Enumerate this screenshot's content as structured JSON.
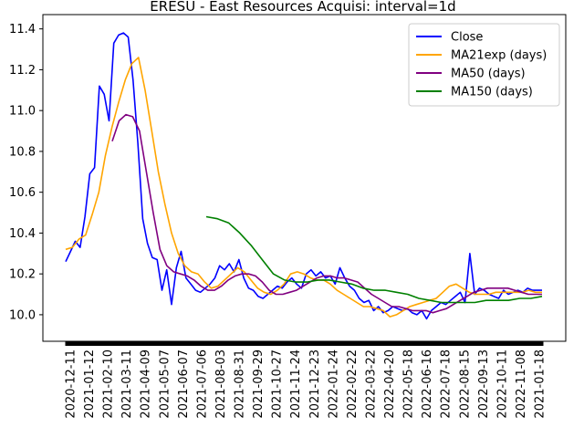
{
  "chart_data": {
    "type": "line",
    "title": "ERESU - East Resources Acquisi: interval=1d",
    "xlabel": "",
    "ylabel": "",
    "x_ticks": [
      "2020-12-11",
      "2021-01-12",
      "2021-02-10",
      "2021-03-11",
      "2021-04-09",
      "2021-05-07",
      "2021-06-07",
      "2021-07-06",
      "2021-08-03",
      "2021-08-31",
      "2021-09-29",
      "2021-10-27",
      "2021-11-24",
      "2021-12-23",
      "2022-01-24",
      "2022-02-22",
      "2022-03-22",
      "2022-04-20",
      "2022-05-18",
      "2022-06-16",
      "2022-07-18",
      "2022-08-15",
      "2022-09-13",
      "2022-10-11",
      "2022-11-08",
      "2021-01-18"
    ],
    "y_ticks": [
      "10.0",
      "10.2",
      "10.4",
      "10.6",
      "10.8",
      "11.0",
      "11.2",
      "11.4"
    ],
    "ylim": [
      9.87,
      11.47
    ],
    "legend_position": "top-right",
    "series": [
      {
        "name": "Close",
        "color": "#0000ff",
        "points": [
          [
            0,
            10.26
          ],
          [
            1,
            10.31
          ],
          [
            2,
            10.36
          ],
          [
            3,
            10.33
          ],
          [
            4,
            10.48
          ],
          [
            5,
            10.69
          ],
          [
            6,
            10.72
          ],
          [
            7,
            11.12
          ],
          [
            8,
            11.08
          ],
          [
            9,
            10.95
          ],
          [
            10,
            11.33
          ],
          [
            11,
            11.37
          ],
          [
            12,
            11.38
          ],
          [
            13,
            11.36
          ],
          [
            14,
            11.15
          ],
          [
            15,
            10.84
          ],
          [
            16,
            10.47
          ],
          [
            17,
            10.35
          ],
          [
            18,
            10.28
          ],
          [
            19,
            10.27
          ],
          [
            20,
            10.12
          ],
          [
            21,
            10.22
          ],
          [
            22,
            10.05
          ],
          [
            23,
            10.23
          ],
          [
            24,
            10.31
          ],
          [
            25,
            10.18
          ],
          [
            26,
            10.15
          ],
          [
            27,
            10.12
          ],
          [
            28,
            10.11
          ],
          [
            29,
            10.13
          ],
          [
            30,
            10.15
          ],
          [
            31,
            10.18
          ],
          [
            32,
            10.24
          ],
          [
            33,
            10.22
          ],
          [
            34,
            10.25
          ],
          [
            35,
            10.21
          ],
          [
            36,
            10.27
          ],
          [
            37,
            10.18
          ],
          [
            38,
            10.13
          ],
          [
            39,
            10.12
          ],
          [
            40,
            10.09
          ],
          [
            41,
            10.08
          ],
          [
            42,
            10.1
          ],
          [
            43,
            10.12
          ],
          [
            44,
            10.14
          ],
          [
            45,
            10.13
          ],
          [
            46,
            10.16
          ],
          [
            47,
            10.18
          ],
          [
            48,
            10.15
          ],
          [
            49,
            10.13
          ],
          [
            50,
            10.2
          ],
          [
            51,
            10.22
          ],
          [
            52,
            10.19
          ],
          [
            53,
            10.21
          ],
          [
            54,
            10.18
          ],
          [
            55,
            10.19
          ],
          [
            56,
            10.15
          ],
          [
            57,
            10.23
          ],
          [
            58,
            10.18
          ],
          [
            59,
            10.14
          ],
          [
            60,
            10.12
          ],
          [
            61,
            10.08
          ],
          [
            62,
            10.06
          ],
          [
            63,
            10.07
          ],
          [
            64,
            10.02
          ],
          [
            65,
            10.04
          ],
          [
            66,
            10.01
          ],
          [
            67,
            10.02
          ],
          [
            68,
            10.04
          ],
          [
            69,
            10.03
          ],
          [
            70,
            10.02
          ],
          [
            71,
            10.03
          ],
          [
            72,
            10.01
          ],
          [
            73,
            10.0
          ],
          [
            74,
            10.02
          ],
          [
            75,
            9.98
          ],
          [
            76,
            10.02
          ],
          [
            77,
            10.04
          ],
          [
            78,
            10.06
          ],
          [
            79,
            10.05
          ],
          [
            80,
            10.07
          ],
          [
            81,
            10.09
          ],
          [
            82,
            10.11
          ],
          [
            83,
            10.06
          ],
          [
            84,
            10.3
          ],
          [
            85,
            10.1
          ],
          [
            86,
            10.13
          ],
          [
            87,
            10.12
          ],
          [
            88,
            10.1
          ],
          [
            89,
            10.09
          ],
          [
            90,
            10.08
          ],
          [
            91,
            10.12
          ],
          [
            92,
            10.1
          ],
          [
            93,
            10.11
          ],
          [
            94,
            10.12
          ],
          [
            95,
            10.11
          ],
          [
            96,
            10.13
          ],
          [
            97,
            10.12
          ],
          [
            98,
            10.12
          ],
          [
            99,
            10.12
          ]
        ]
      },
      {
        "name": "MA21exp (days)",
        "color": "#ffa500",
        "points": [
          [
            0,
            10.32
          ],
          [
            1,
            10.33
          ],
          [
            2,
            10.37
          ],
          [
            3,
            10.39
          ],
          [
            4,
            10.49
          ],
          [
            5,
            10.6
          ],
          [
            6,
            10.78
          ],
          [
            7,
            10.92
          ],
          [
            8,
            11.04
          ],
          [
            9,
            11.15
          ],
          [
            10,
            11.23
          ],
          [
            11,
            11.26
          ],
          [
            12,
            11.1
          ],
          [
            13,
            10.9
          ],
          [
            14,
            10.7
          ],
          [
            15,
            10.54
          ],
          [
            16,
            10.4
          ],
          [
            17,
            10.3
          ],
          [
            18,
            10.24
          ],
          [
            19,
            10.21
          ],
          [
            20,
            10.2
          ],
          [
            21,
            10.16
          ],
          [
            22,
            10.13
          ],
          [
            23,
            10.14
          ],
          [
            24,
            10.17
          ],
          [
            25,
            10.2
          ],
          [
            26,
            10.23
          ],
          [
            27,
            10.21
          ],
          [
            28,
            10.17
          ],
          [
            29,
            10.13
          ],
          [
            30,
            10.11
          ],
          [
            31,
            10.1
          ],
          [
            32,
            10.12
          ],
          [
            33,
            10.15
          ],
          [
            34,
            10.2
          ],
          [
            35,
            10.21
          ],
          [
            36,
            10.2
          ],
          [
            37,
            10.18
          ],
          [
            38,
            10.17
          ],
          [
            39,
            10.17
          ],
          [
            40,
            10.15
          ],
          [
            41,
            10.12
          ],
          [
            42,
            10.1
          ],
          [
            43,
            10.08
          ],
          [
            44,
            10.06
          ],
          [
            45,
            10.04
          ],
          [
            46,
            10.04
          ],
          [
            47,
            10.03
          ],
          [
            48,
            10.02
          ],
          [
            49,
            9.99
          ],
          [
            50,
            10.0
          ],
          [
            51,
            10.02
          ],
          [
            52,
            10.04
          ],
          [
            53,
            10.05
          ],
          [
            54,
            10.06
          ],
          [
            55,
            10.07
          ],
          [
            56,
            10.08
          ],
          [
            57,
            10.11
          ],
          [
            58,
            10.14
          ],
          [
            59,
            10.15
          ],
          [
            60,
            10.13
          ],
          [
            61,
            10.11
          ],
          [
            62,
            10.1
          ],
          [
            63,
            10.1
          ],
          [
            64,
            10.1
          ],
          [
            65,
            10.11
          ],
          [
            66,
            10.11
          ],
          [
            67,
            10.11
          ],
          [
            68,
            10.11
          ],
          [
            69,
            10.11
          ],
          [
            70,
            10.12
          ],
          [
            71,
            10.11
          ],
          [
            72,
            10.11
          ]
        ]
      },
      {
        "name": "MA50 (days)",
        "color": "#800080",
        "points": [
          [
            0,
            10.85
          ],
          [
            1,
            10.95
          ],
          [
            2,
            10.98
          ],
          [
            3,
            10.97
          ],
          [
            4,
            10.9
          ],
          [
            5,
            10.7
          ],
          [
            6,
            10.5
          ],
          [
            7,
            10.32
          ],
          [
            8,
            10.24
          ],
          [
            9,
            10.21
          ],
          [
            10,
            10.2
          ],
          [
            11,
            10.19
          ],
          [
            12,
            10.17
          ],
          [
            13,
            10.14
          ],
          [
            14,
            10.12
          ],
          [
            15,
            10.12
          ],
          [
            16,
            10.14
          ],
          [
            17,
            10.17
          ],
          [
            18,
            10.19
          ],
          [
            19,
            10.2
          ],
          [
            20,
            10.2
          ],
          [
            21,
            10.19
          ],
          [
            22,
            10.16
          ],
          [
            23,
            10.12
          ],
          [
            24,
            10.1
          ],
          [
            25,
            10.1
          ],
          [
            26,
            10.11
          ],
          [
            27,
            10.12
          ],
          [
            28,
            10.14
          ],
          [
            29,
            10.16
          ],
          [
            30,
            10.18
          ],
          [
            31,
            10.19
          ],
          [
            32,
            10.19
          ],
          [
            33,
            10.18
          ],
          [
            34,
            10.18
          ],
          [
            35,
            10.17
          ],
          [
            36,
            10.16
          ],
          [
            37,
            10.13
          ],
          [
            38,
            10.1
          ],
          [
            39,
            10.08
          ],
          [
            40,
            10.06
          ],
          [
            41,
            10.04
          ],
          [
            42,
            10.04
          ],
          [
            43,
            10.03
          ],
          [
            44,
            10.02
          ],
          [
            45,
            10.02
          ],
          [
            46,
            10.02
          ],
          [
            47,
            10.01
          ],
          [
            48,
            10.02
          ],
          [
            49,
            10.03
          ],
          [
            50,
            10.05
          ],
          [
            51,
            10.07
          ],
          [
            52,
            10.09
          ],
          [
            53,
            10.11
          ],
          [
            54,
            10.12
          ],
          [
            55,
            10.13
          ],
          [
            56,
            10.13
          ],
          [
            57,
            10.13
          ],
          [
            58,
            10.13
          ],
          [
            59,
            10.12
          ],
          [
            60,
            10.11
          ],
          [
            61,
            10.1
          ],
          [
            62,
            10.1
          ],
          [
            63,
            10.1
          ]
        ]
      },
      {
        "name": "MA150 (days)",
        "color": "#008000",
        "points": [
          [
            0,
            10.48
          ],
          [
            1,
            10.47
          ],
          [
            2,
            10.45
          ],
          [
            3,
            10.4
          ],
          [
            4,
            10.34
          ],
          [
            5,
            10.27
          ],
          [
            6,
            10.2
          ],
          [
            7,
            10.17
          ],
          [
            8,
            10.16
          ],
          [
            9,
            10.16
          ],
          [
            10,
            10.17
          ],
          [
            11,
            10.17
          ],
          [
            12,
            10.16
          ],
          [
            13,
            10.15
          ],
          [
            14,
            10.13
          ],
          [
            15,
            10.12
          ],
          [
            16,
            10.12
          ],
          [
            17,
            10.11
          ],
          [
            18,
            10.1
          ],
          [
            19,
            10.08
          ],
          [
            20,
            10.07
          ],
          [
            21,
            10.06
          ],
          [
            22,
            10.06
          ],
          [
            23,
            10.06
          ],
          [
            24,
            10.06
          ],
          [
            25,
            10.07
          ],
          [
            26,
            10.07
          ],
          [
            27,
            10.07
          ],
          [
            28,
            10.08
          ],
          [
            29,
            10.08
          ],
          [
            30,
            10.09
          ]
        ]
      }
    ]
  }
}
